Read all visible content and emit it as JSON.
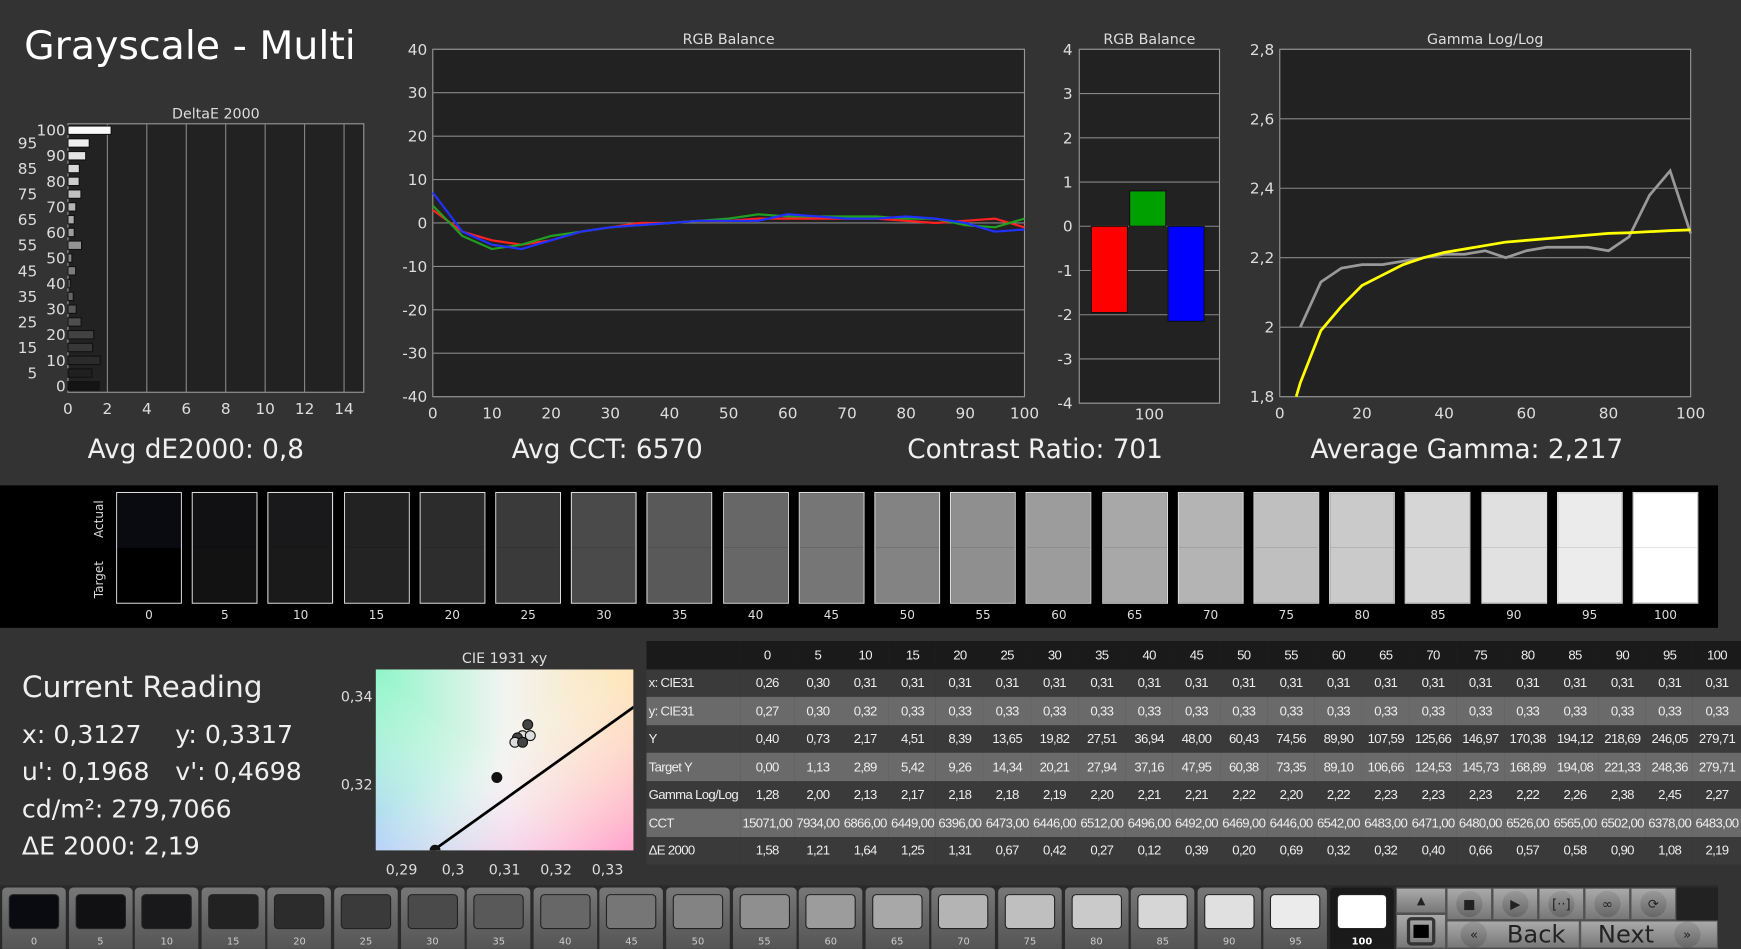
{
  "title": "Grayscale - Multi",
  "summary": {
    "avg_de": "Avg dE2000: 0,8",
    "avg_cct": "Avg CCT: 6570",
    "contrast": "Contrast Ratio: 701",
    "avg_gamma": "Average Gamma: 2,217"
  },
  "chart_data": [
    {
      "type": "bar",
      "orientation": "horizontal",
      "title": "DeltaE 2000",
      "categories": [
        0,
        5,
        10,
        15,
        20,
        25,
        30,
        35,
        40,
        45,
        50,
        55,
        60,
        65,
        70,
        75,
        80,
        85,
        90,
        95,
        100
      ],
      "values": [
        1.58,
        1.21,
        1.64,
        1.25,
        1.31,
        0.67,
        0.42,
        0.27,
        0.12,
        0.39,
        0.2,
        0.69,
        0.32,
        0.32,
        0.4,
        0.66,
        0.57,
        0.58,
        0.9,
        1.08,
        2.19
      ],
      "xlim": [
        0,
        15
      ],
      "xticks": [
        0,
        2,
        4,
        6,
        8,
        10,
        12,
        14
      ],
      "ytick_labels": [
        "0",
        "5",
        "10",
        "15",
        "20",
        "25",
        "30",
        "35",
        "40",
        "45",
        "50",
        "55",
        "60",
        "65",
        "70",
        "75",
        "80",
        "85",
        "90",
        "95",
        "100"
      ]
    },
    {
      "type": "line",
      "title": "RGB Balance",
      "x": [
        0,
        5,
        10,
        15,
        20,
        25,
        30,
        35,
        40,
        45,
        50,
        55,
        60,
        65,
        70,
        75,
        80,
        85,
        90,
        95,
        100
      ],
      "ylim": [
        -40,
        40
      ],
      "yticks": [
        -40,
        -30,
        -20,
        -10,
        0,
        10,
        20,
        30,
        40
      ],
      "xticks": [
        0,
        10,
        20,
        30,
        40,
        50,
        60,
        70,
        80,
        90,
        100
      ],
      "series": [
        {
          "color": "#ff2020",
          "values": [
            3,
            -2,
            -4,
            -5,
            -4,
            -2,
            -1,
            0,
            0,
            0.5,
            0.5,
            1,
            1,
            1,
            1,
            1,
            0.5,
            0,
            0.5,
            1,
            -1
          ]
        },
        {
          "color": "#20a020",
          "values": [
            4,
            -3,
            -6,
            -5,
            -3,
            -2,
            -1,
            -0.5,
            0,
            0.5,
            1,
            2,
            1.5,
            1.5,
            1.5,
            1.5,
            1,
            1,
            -0.5,
            -1,
            1
          ]
        },
        {
          "color": "#2030ff",
          "values": [
            7,
            -2,
            -5,
            -6,
            -4,
            -2,
            -1,
            -0.5,
            0,
            0.5,
            0.5,
            0.5,
            2,
            1.5,
            1,
            1,
            1.5,
            1,
            0,
            -2,
            -1.5
          ]
        }
      ]
    },
    {
      "type": "bar",
      "title": "RGB Balance",
      "categories": [
        "100"
      ],
      "ylim": [
        -4,
        4
      ],
      "yticks": [
        -4,
        -3,
        -2,
        -1,
        0,
        1,
        2,
        3,
        4
      ],
      "series": [
        {
          "color": "#ff0000",
          "values": [
            -1.95
          ]
        },
        {
          "color": "#00a000",
          "values": [
            0.8
          ]
        },
        {
          "color": "#0000ff",
          "values": [
            -2.15
          ]
        }
      ]
    },
    {
      "type": "line",
      "title": "Gamma Log/Log",
      "ylim": [
        1.8,
        2.8
      ],
      "xlim": [
        0,
        100
      ],
      "yticks": [
        "1,8",
        "2",
        "2,2",
        "2,4",
        "2,6",
        "2,8"
      ],
      "xticks": [
        0,
        20,
        40,
        60,
        80,
        100
      ],
      "series": [
        {
          "color": "#999999",
          "x": [
            5,
            10,
            15,
            20,
            25,
            30,
            35,
            40,
            45,
            50,
            55,
            60,
            65,
            70,
            75,
            80,
            85,
            90,
            95,
            100
          ],
          "values": [
            2.0,
            2.13,
            2.17,
            2.18,
            2.18,
            2.19,
            2.2,
            2.21,
            2.21,
            2.22,
            2.2,
            2.22,
            2.23,
            2.23,
            2.23,
            2.22,
            2.26,
            2.38,
            2.45,
            2.27
          ]
        },
        {
          "color": "#ffff00",
          "x": [
            4,
            5,
            10,
            15,
            20,
            25,
            30,
            35,
            40,
            45,
            50,
            55,
            60,
            65,
            70,
            75,
            80,
            85,
            90,
            95,
            100
          ],
          "values": [
            1.8,
            1.84,
            1.99,
            2.06,
            2.12,
            2.15,
            2.18,
            2.2,
            2.215,
            2.225,
            2.235,
            2.245,
            2.25,
            2.255,
            2.26,
            2.265,
            2.27,
            2.272,
            2.275,
            2.278,
            2.28
          ]
        }
      ]
    },
    {
      "type": "scatter",
      "title": "CIE 1931 xy",
      "xlim": [
        0.285,
        0.335
      ],
      "ylim": [
        0.305,
        0.346
      ],
      "xticks": [
        "0,29",
        "0,3",
        "0,31",
        "0,32",
        "0,33"
      ],
      "yticks": [
        "0,32",
        "0,34"
      ],
      "points": [
        [
          0.3145,
          0.3335
        ],
        [
          0.3135,
          0.331
        ],
        [
          0.3125,
          0.3305
        ],
        [
          0.312,
          0.3295
        ],
        [
          0.3135,
          0.3295
        ],
        [
          0.315,
          0.331
        ],
        [
          0.3085,
          0.3215
        ],
        [
          0.2965,
          0.305
        ]
      ],
      "locus": [
        [
          0.295,
          0.304
        ],
        [
          0.3375,
          0.3395
        ]
      ]
    }
  ],
  "swatches": {
    "actual_label": "Actual",
    "target_label": "Target",
    "labels": [
      "0",
      "5",
      "10",
      "15",
      "20",
      "25",
      "30",
      "35",
      "40",
      "45",
      "50",
      "55",
      "60",
      "65",
      "70",
      "75",
      "80",
      "85",
      "90",
      "95",
      "100"
    ],
    "actual": [
      "#0a0b10",
      "#111114",
      "#19191b",
      "#222223",
      "#2c2c2c",
      "#3a3a3a",
      "#4a4a4a",
      "#595959",
      "#676767",
      "#767676",
      "#838383",
      "#8f8f8f",
      "#9c9c9c",
      "#a8a8a8",
      "#b4b4b4",
      "#bfbfbf",
      "#cacaca",
      "#d6d6d6",
      "#e0e0e0",
      "#ebebeb",
      "#ffffff"
    ],
    "target": [
      "#000000",
      "#121212",
      "#1a1a1a",
      "#232323",
      "#2d2d2d",
      "#3a3a3a",
      "#4a4a4a",
      "#595959",
      "#676767",
      "#767676",
      "#838383",
      "#8f8f8f",
      "#9c9c9c",
      "#a8a8a8",
      "#b4b4b4",
      "#bfbfbf",
      "#cacaca",
      "#d6d6d6",
      "#e1e1e1",
      "#ececec",
      "#ffffff"
    ]
  },
  "current": {
    "heading": "Current Reading",
    "x": "x: 0,3127",
    "y": "y: 0,3317",
    "u": "u': 0,1968",
    "v": "v': 0,4698",
    "cd": "cd/m²: 279,7066",
    "de": "ΔE 2000: 2,19"
  },
  "table": {
    "headers": [
      "",
      "0",
      "5",
      "10",
      "15",
      "20",
      "25",
      "30",
      "35",
      "40",
      "45",
      "50",
      "55",
      "60",
      "65",
      "70",
      "75",
      "80",
      "85",
      "90",
      "95",
      "100"
    ],
    "rows": [
      [
        "x: CIE31",
        "0,26",
        "0,30",
        "0,31",
        "0,31",
        "0,31",
        "0,31",
        "0,31",
        "0,31",
        "0,31",
        "0,31",
        "0,31",
        "0,31",
        "0,31",
        "0,31",
        "0,31",
        "0,31",
        "0,31",
        "0,31",
        "0,31",
        "0,31",
        "0,31"
      ],
      [
        "y: CIE31",
        "0,27",
        "0,30",
        "0,32",
        "0,33",
        "0,33",
        "0,33",
        "0,33",
        "0,33",
        "0,33",
        "0,33",
        "0,33",
        "0,33",
        "0,33",
        "0,33",
        "0,33",
        "0,33",
        "0,33",
        "0,33",
        "0,33",
        "0,33",
        "0,33"
      ],
      [
        "Y",
        "0,40",
        "0,73",
        "2,17",
        "4,51",
        "8,39",
        "13,65",
        "19,82",
        "27,51",
        "36,94",
        "48,00",
        "60,43",
        "74,56",
        "89,90",
        "107,59",
        "125,66",
        "146,97",
        "170,38",
        "194,12",
        "218,69",
        "246,05",
        "279,71"
      ],
      [
        "Target Y",
        "0,00",
        "1,13",
        "2,89",
        "5,42",
        "9,26",
        "14,34",
        "20,21",
        "27,94",
        "37,16",
        "47,95",
        "60,38",
        "73,35",
        "89,10",
        "106,66",
        "124,53",
        "145,73",
        "168,89",
        "194,08",
        "221,33",
        "248,36",
        "279,71"
      ],
      [
        "Gamma Log/Log",
        "1,28",
        "2,00",
        "2,13",
        "2,17",
        "2,18",
        "2,18",
        "2,19",
        "2,20",
        "2,21",
        "2,21",
        "2,22",
        "2,20",
        "2,22",
        "2,23",
        "2,23",
        "2,23",
        "2,22",
        "2,26",
        "2,38",
        "2,45",
        "2,27"
      ],
      [
        "CCT",
        "15071,00",
        "7934,00",
        "6866,00",
        "6449,00",
        "6396,00",
        "6473,00",
        "6446,00",
        "6512,00",
        "6496,00",
        "6492,00",
        "6469,00",
        "6446,00",
        "6542,00",
        "6483,00",
        "6471,00",
        "6480,00",
        "6526,00",
        "6565,00",
        "6502,00",
        "6378,00",
        "6483,00"
      ],
      [
        "ΔE 2000",
        "1,58",
        "1,21",
        "1,64",
        "1,25",
        "1,31",
        "0,67",
        "0,42",
        "0,27",
        "0,12",
        "0,39",
        "0,20",
        "0,69",
        "0,32",
        "0,32",
        "0,40",
        "0,66",
        "0,57",
        "0,58",
        "0,90",
        "1,08",
        "2,19"
      ]
    ]
  },
  "toolbar": {
    "patch_labels": [
      "0",
      "5",
      "10",
      "15",
      "20",
      "25",
      "30",
      "35",
      "40",
      "45",
      "50",
      "55",
      "60",
      "65",
      "70",
      "75",
      "80",
      "85",
      "90",
      "95",
      "100"
    ],
    "selected": "100",
    "back": "Back",
    "next": "Next",
    "icons": [
      "stop-icon",
      "play-icon",
      "fit-icon",
      "infinity-icon",
      "refresh-icon"
    ],
    "icon_glyphs": [
      "■",
      "▶",
      "[··]",
      "∞",
      "⟳"
    ],
    "back_glyph": "«",
    "next_glyph": "»"
  }
}
